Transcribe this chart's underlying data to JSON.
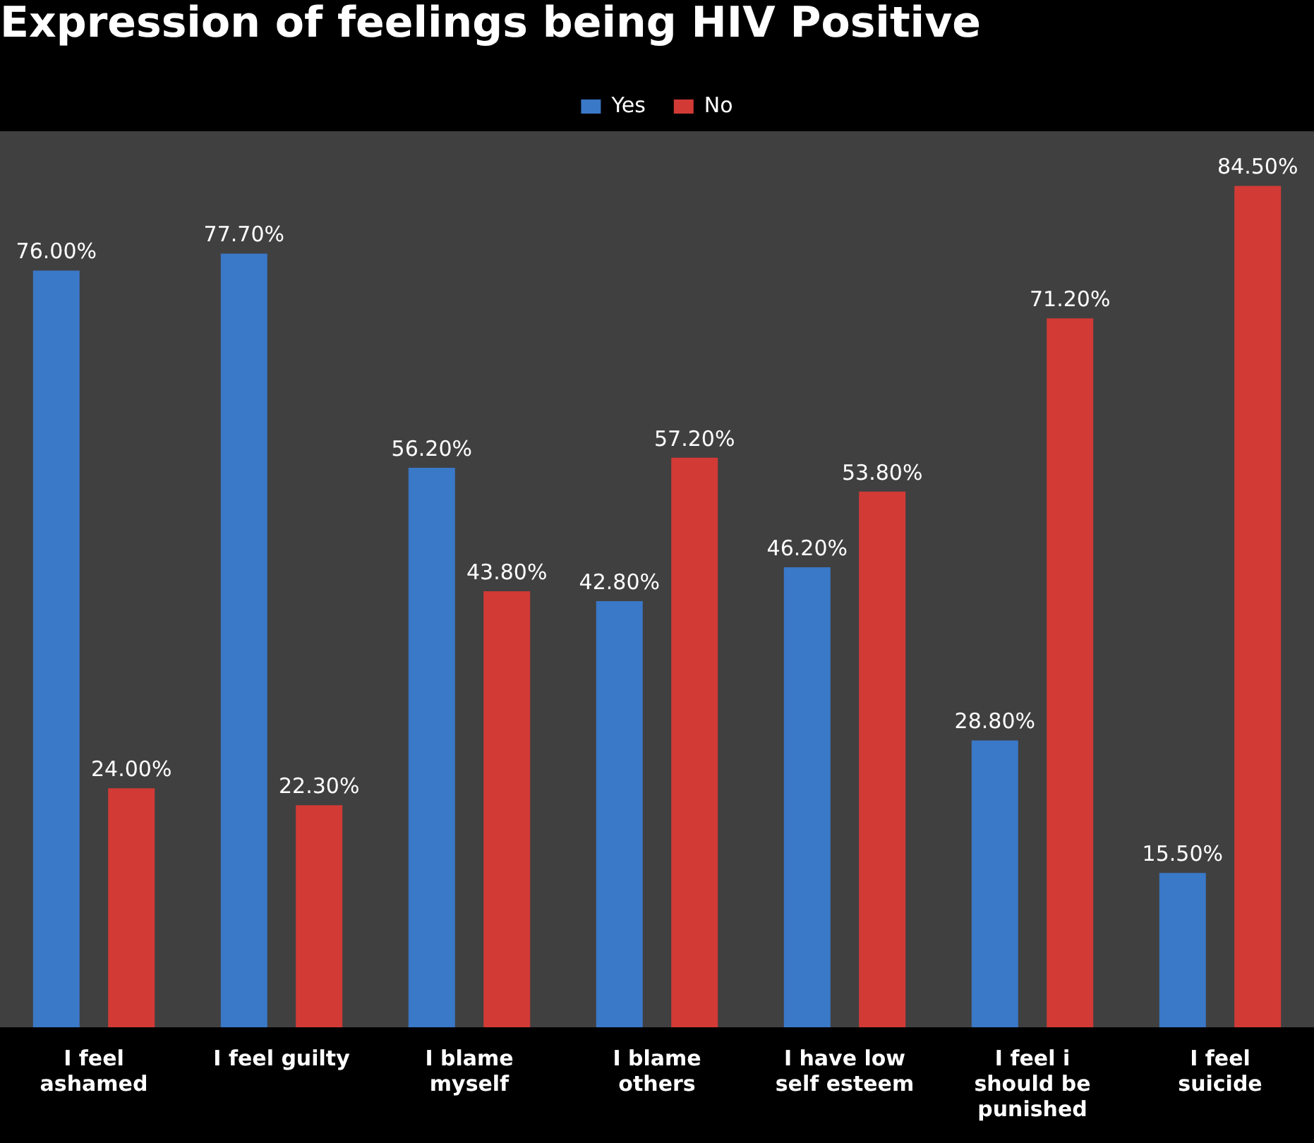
{
  "chart_data": {
    "type": "bar",
    "title": "Expression of feelings being HIV Positive",
    "categories": [
      "I feel ashamed",
      "I feel guilty",
      "I blame myself",
      "I blame others",
      "I have low self esteem",
      "I feel i should be punished",
      "I feel suicide"
    ],
    "series": [
      {
        "name": "Yes",
        "color": "#3a78c8",
        "values": [
          76.0,
          77.7,
          56.2,
          42.8,
          46.2,
          28.8,
          15.5
        ],
        "value_labels": [
          "76.00%",
          "77.70%",
          "56.20%",
          "42.80%",
          "46.20%",
          "28.80%",
          "15.50%"
        ]
      },
      {
        "name": "No",
        "color": "#d23a36",
        "values": [
          24.0,
          22.3,
          43.8,
          57.2,
          53.8,
          71.2,
          84.5
        ],
        "value_labels": [
          "24.00%",
          "22.30%",
          "43.80%",
          "57.20%",
          "53.80%",
          "71.20%",
          "84.50%"
        ]
      }
    ],
    "legend": "top",
    "grid": false,
    "tick_labels": "x"
  }
}
